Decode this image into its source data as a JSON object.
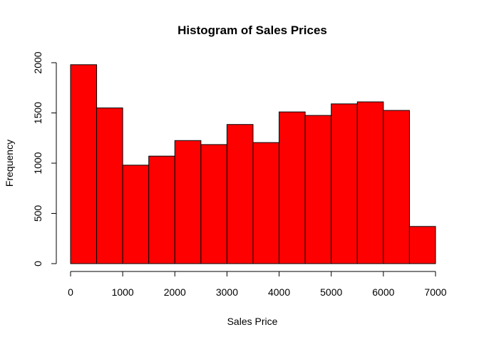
{
  "chart_data": {
    "type": "bar",
    "title": "Histogram of Sales Prices",
    "xlabel": "Sales Price",
    "ylabel": "Frequency",
    "bin_edges": [
      0,
      500,
      1000,
      1500,
      2000,
      2500,
      3000,
      3500,
      4000,
      4500,
      5000,
      5500,
      6000,
      6500,
      7000
    ],
    "values": [
      1980,
      1550,
      980,
      1070,
      1225,
      1185,
      1385,
      1205,
      1510,
      1475,
      1590,
      1610,
      1525,
      370
    ],
    "xlim": [
      0,
      7000
    ],
    "ylim": [
      0,
      2000
    ],
    "x_ticks": [
      0,
      1000,
      2000,
      3000,
      4000,
      5000,
      6000,
      7000
    ],
    "y_ticks": [
      0,
      500,
      1000,
      1500,
      2000
    ],
    "bar_color": "#FF0000",
    "grid": false,
    "legend": "none"
  }
}
